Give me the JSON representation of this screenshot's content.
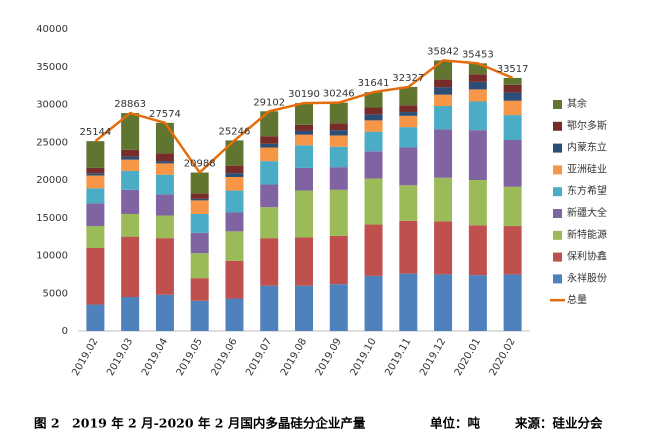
{
  "chart_data": {
    "type": "stacked_bar_line",
    "categories": [
      "2019.02",
      "2019.03",
      "2019.04",
      "2019.05",
      "2019.06",
      "2019.07",
      "2019.08",
      "2019.09",
      "2019.10",
      "2019.11",
      "2019.12",
      "2020.01",
      "2020.02"
    ],
    "series": [
      {
        "name": "永祥股份",
        "color": "#4f81bd",
        "values": [
          3500,
          4500,
          4800,
          4000,
          4300,
          6000,
          6000,
          6200,
          7300,
          7600,
          7500,
          7400,
          7500
        ]
      },
      {
        "name": "保利协鑫",
        "color": "#c0504d",
        "values": [
          7500,
          8000,
          7500,
          3000,
          5000,
          6300,
          6400,
          6400,
          6800,
          7000,
          7000,
          6600,
          6400
        ]
      },
      {
        "name": "新特能源",
        "color": "#9bbb59",
        "values": [
          2900,
          3000,
          3000,
          3300,
          3900,
          4100,
          6200,
          6100,
          6100,
          4700,
          5800,
          6000,
          5200
        ]
      },
      {
        "name": "新疆大全",
        "color": "#8064a2",
        "values": [
          3000,
          3200,
          2800,
          2700,
          2500,
          3000,
          3000,
          3000,
          3600,
          5000,
          6400,
          6600,
          6200
        ]
      },
      {
        "name": "东方希望",
        "color": "#4bacc6",
        "values": [
          2000,
          2500,
          2600,
          2500,
          2900,
          3100,
          3000,
          2700,
          2600,
          2700,
          3100,
          3800,
          3300
        ]
      },
      {
        "name": "亚洲硅业",
        "color": "#f79646",
        "values": [
          1700,
          1500,
          1500,
          1800,
          1800,
          1800,
          1400,
          1500,
          1500,
          1500,
          1500,
          1600,
          1900
        ]
      },
      {
        "name": "内蒙东立",
        "color": "#2c4d75",
        "values": [
          300,
          400,
          300,
          200,
          500,
          500,
          500,
          700,
          800,
          500,
          1000,
          1000,
          1100
        ]
      },
      {
        "name": "鄂尔多斯",
        "color": "#772c2a",
        "values": [
          700,
          900,
          1000,
          700,
          1000,
          1000,
          800,
          900,
          900,
          900,
          1000,
          1000,
          1000
        ]
      },
      {
        "name": "其余",
        "color": "#5f7530",
        "values": [
          3544,
          4863,
          4074,
          2788,
          3346,
          3302,
          2890,
          2746,
          2041,
          2427,
          2542,
          1453,
          917
        ]
      }
    ],
    "line_series": {
      "name": "总量",
      "color": "#e46c0a",
      "values": [
        25144,
        28863,
        27574,
        20988,
        25246,
        29102,
        30190,
        30246,
        31641,
        32327,
        35842,
        35453,
        33517
      ]
    },
    "ylim": [
      0,
      40000
    ],
    "yticks": [
      0,
      5000,
      10000,
      15000,
      20000,
      25000,
      30000,
      35000,
      40000
    ],
    "grid": false,
    "legend": "right"
  },
  "caption": {
    "title": "图 2　2019 年 2 月-2020 年 2 月国内多晶硅分企业产量",
    "unit": "单位：吨",
    "source": "来源：硅业分会"
  }
}
